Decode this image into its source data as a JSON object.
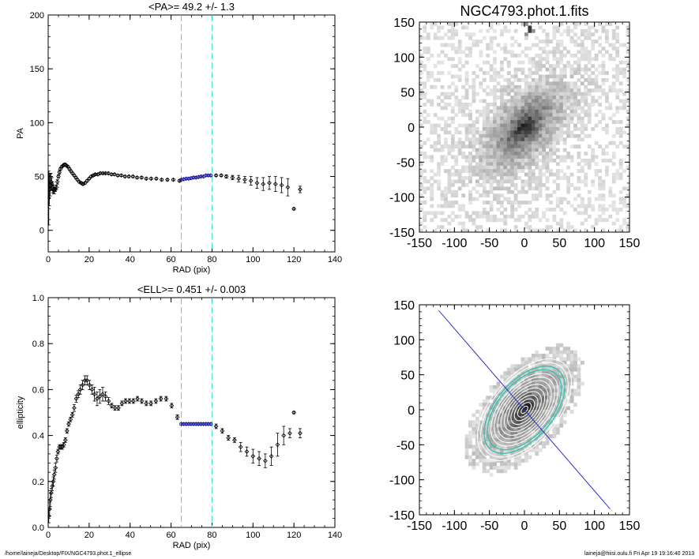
{
  "page": {
    "footer_left": "/home/laineja/Desktop/FIX/NGC4793.phot.1_ellipse",
    "footer_right": "laineja@hiisi.oulu.fi  Fri Apr 19 19:16:40 2013"
  },
  "chart_data": [
    {
      "type": "scatter",
      "title": "<PA>=  49.2 +/-   1.3",
      "xlabel": "RAD (pix)",
      "ylabel": "PA",
      "xlim": [
        0,
        140
      ],
      "ylim": [
        -20,
        200
      ],
      "xticks": [
        0,
        20,
        40,
        60,
        80,
        100,
        120,
        140
      ],
      "yticks": [
        0,
        50,
        100,
        150,
        200
      ],
      "vlines": [
        65,
        80
      ],
      "colors": {
        "data": "#000000",
        "fit_region": "#1a1aa0",
        "vline": "#40e0d0"
      },
      "series": [
        {
          "x": [
            0.3,
            0.6,
            1.0,
            1.4,
            1.8,
            2.2,
            2.6,
            3.0,
            3.5,
            4.0,
            4.5,
            5.0,
            5.5,
            6.0,
            6.6,
            7.2,
            7.8,
            8.4,
            9.0,
            9.7,
            10.4,
            11.1,
            11.9,
            12.7,
            13.5,
            14.3,
            15.2,
            16.1,
            17.0,
            18.0,
            19.0,
            20.0,
            21.0,
            22.0,
            23.0,
            24.2,
            25.4,
            26.7,
            28.0,
            29.4,
            30.9,
            32.4,
            34.0,
            35.7,
            37.5,
            39.4,
            41.4,
            43.4,
            45.6,
            47.9,
            50.3,
            52.8,
            55.4,
            58.2,
            61.1,
            64.1
          ],
          "y": [
            30,
            38,
            42,
            45,
            43,
            40,
            38,
            37,
            38,
            40,
            45,
            50,
            54,
            57,
            59,
            60,
            61,
            61,
            60,
            59,
            57,
            55,
            53,
            51,
            49,
            47,
            45,
            44,
            43,
            44,
            46,
            48,
            50,
            51,
            52,
            52,
            53,
            53,
            53,
            53,
            52,
            52,
            51,
            51,
            50,
            50,
            50,
            49,
            49,
            48,
            48,
            48,
            47,
            47,
            47,
            46
          ],
          "errors": [
            25,
            15,
            10,
            8,
            6,
            5,
            4,
            3,
            2,
            2,
            2,
            1.5,
            1.5,
            1.2,
            1,
            1,
            1,
            1,
            1,
            1,
            1,
            1,
            1,
            1,
            1,
            1,
            1,
            1,
            1,
            1,
            1,
            1,
            1,
            1,
            1,
            1,
            1,
            1,
            1,
            1,
            1,
            1,
            1,
            1,
            1,
            1,
            1,
            1,
            1,
            1,
            1,
            1,
            1,
            1,
            1,
            1
          ]
        },
        {
          "x": [
            65.0,
            66.2,
            67.4,
            68.6,
            69.8,
            71.0,
            72.2,
            73.4,
            74.6,
            75.8,
            77.0,
            78.2,
            79.4
          ],
          "y": [
            47,
            47.5,
            48,
            48,
            48.5,
            49,
            49,
            49.5,
            50,
            50,
            51,
            51,
            51
          ],
          "errors": [
            1,
            1,
            1,
            1,
            1,
            1,
            1,
            1,
            1,
            1,
            1,
            1,
            1
          ]
        },
        {
          "x": [
            82,
            84.5,
            87,
            90,
            93,
            96,
            99,
            102,
            105,
            108,
            111,
            114,
            117,
            120,
            123
          ],
          "y": [
            51,
            51,
            50,
            49,
            48,
            47,
            46,
            44,
            43,
            44,
            43,
            42,
            40,
            20,
            38
          ],
          "errors": [
            1,
            1,
            1.5,
            2,
            3,
            3,
            4,
            5,
            6,
            6,
            7,
            7,
            8,
            1,
            3
          ]
        }
      ]
    },
    {
      "type": "image",
      "title": "NGC4793.phot.1.fits",
      "xlim": [
        -150,
        150
      ],
      "ylim": [
        -150,
        150
      ],
      "xticks": [
        -150,
        -100,
        -50,
        0,
        50,
        100,
        150
      ],
      "yticks": [
        -150,
        -100,
        -50,
        0,
        50,
        100,
        150
      ],
      "colormap": "grayscale-inverted",
      "galaxy_position_angle_deg": 49.2
    },
    {
      "type": "scatter",
      "title": "<ELL>= 0.451 +/-  0.003",
      "xlabel": "RAD (pix)",
      "ylabel": "ellipticity",
      "xlim": [
        0,
        140
      ],
      "ylim": [
        0,
        1
      ],
      "xticks": [
        0,
        20,
        40,
        60,
        80,
        100,
        120,
        140
      ],
      "yticks": [
        0.0,
        0.2,
        0.4,
        0.6,
        0.8,
        1.0
      ],
      "vlines": [
        65,
        80
      ],
      "colors": {
        "data": "#000000",
        "fit_region": "#1a1aa0",
        "vline": "#40e0d0"
      },
      "series": [
        {
          "x": [
            0.3,
            0.7,
            1.1,
            1.5,
            2.0,
            2.5,
            3.0,
            3.6,
            4.2,
            4.8,
            5.5,
            6.2,
            6.9,
            7.6,
            8.4,
            9.2,
            10.0,
            10.9,
            11.8,
            12.7,
            13.7,
            14.7,
            15.7,
            16.8,
            17.9,
            19.0,
            20.2,
            21.4,
            22.6,
            23.9,
            25.2,
            26.6,
            28.0,
            29.5,
            31.0,
            32.6,
            34.3,
            36.0,
            37.8,
            39.7,
            41.6,
            43.6,
            45.7,
            47.9,
            50.2,
            52.6,
            55.0,
            57.6,
            60.3,
            63.1
          ],
          "y": [
            0.05,
            0.08,
            0.12,
            0.15,
            0.18,
            0.2,
            0.23,
            0.26,
            0.3,
            0.33,
            0.35,
            0.35,
            0.35,
            0.36,
            0.38,
            0.42,
            0.45,
            0.47,
            0.49,
            0.52,
            0.56,
            0.58,
            0.6,
            0.62,
            0.64,
            0.64,
            0.62,
            0.6,
            0.58,
            0.56,
            0.57,
            0.58,
            0.57,
            0.55,
            0.53,
            0.52,
            0.52,
            0.54,
            0.55,
            0.55,
            0.55,
            0.56,
            0.55,
            0.54,
            0.54,
            0.55,
            0.56,
            0.56,
            0.53,
            0.48
          ],
          "errors": [
            0.03,
            0.03,
            0.03,
            0.02,
            0.02,
            0.02,
            0.02,
            0.02,
            0.015,
            0.01,
            0.01,
            0.01,
            0.01,
            0.01,
            0.01,
            0.01,
            0.01,
            0.01,
            0.01,
            0.015,
            0.015,
            0.015,
            0.02,
            0.02,
            0.02,
            0.02,
            0.02,
            0.02,
            0.03,
            0.03,
            0.03,
            0.03,
            0.02,
            0.015,
            0.01,
            0.01,
            0.01,
            0.01,
            0.01,
            0.01,
            0.01,
            0.01,
            0.01,
            0.01,
            0.01,
            0.01,
            0.01,
            0.01,
            0.01,
            0.01
          ]
        },
        {
          "x": [
            65.0,
            66.2,
            67.4,
            68.6,
            69.8,
            71.0,
            72.2,
            73.4,
            74.6,
            75.8,
            77.0,
            78.2,
            79.4
          ],
          "y": [
            0.45,
            0.45,
            0.45,
            0.45,
            0.45,
            0.45,
            0.45,
            0.45,
            0.45,
            0.45,
            0.45,
            0.45,
            0.45
          ],
          "errors": [
            0.005,
            0.005,
            0.005,
            0.005,
            0.005,
            0.005,
            0.005,
            0.005,
            0.005,
            0.005,
            0.005,
            0.005,
            0.005
          ]
        },
        {
          "x": [
            82,
            85,
            88,
            91,
            94,
            97,
            100,
            103,
            106,
            109,
            112,
            115,
            118,
            120,
            123
          ],
          "y": [
            0.44,
            0.42,
            0.39,
            0.38,
            0.35,
            0.33,
            0.31,
            0.3,
            0.29,
            0.31,
            0.36,
            0.4,
            0.41,
            0.5,
            0.41
          ],
          "errors": [
            0.01,
            0.01,
            0.01,
            0.01,
            0.02,
            0.02,
            0.03,
            0.03,
            0.03,
            0.04,
            0.05,
            0.04,
            0.02,
            0.005,
            0.02
          ]
        }
      ]
    },
    {
      "type": "image",
      "title": "",
      "xlim": [
        -150,
        150
      ],
      "ylim": [
        -150,
        150
      ],
      "xticks": [
        -150,
        -100,
        -50,
        0,
        50,
        100,
        150
      ],
      "yticks": [
        -150,
        -100,
        -50,
        0,
        50,
        100,
        150
      ],
      "colormap": "grayscale-inverted",
      "galaxy_position_angle_deg": 49.2,
      "colors": {
        "major_axis": "#3232c8",
        "contour_fit": "#40c0b0",
        "contour": "#ffffff"
      }
    }
  ]
}
